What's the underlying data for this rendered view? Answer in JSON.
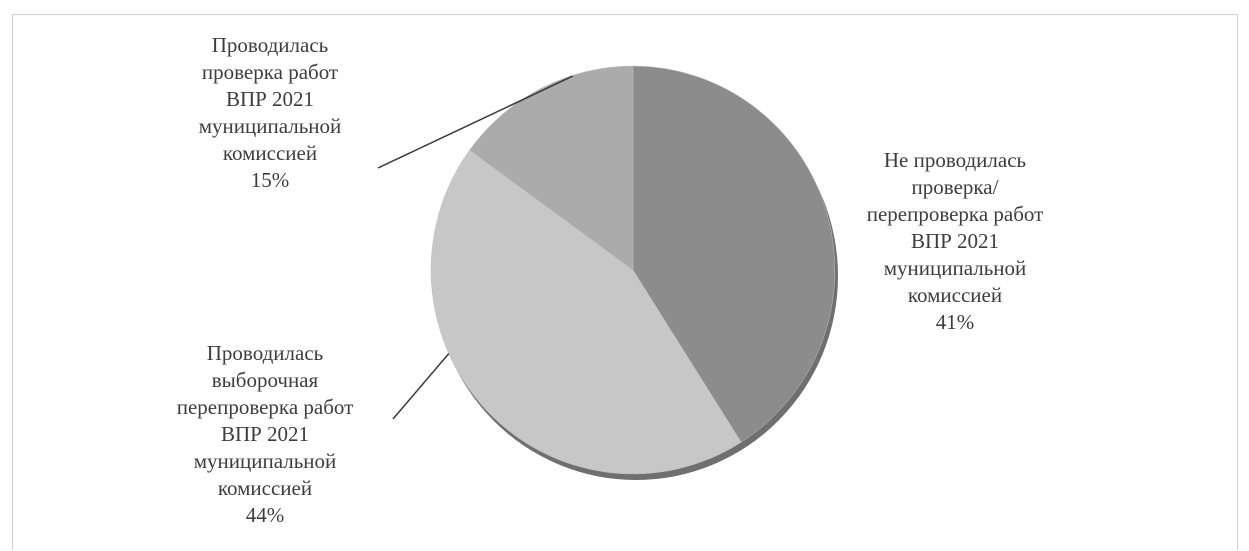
{
  "chart_data": {
    "type": "pie",
    "title": "",
    "slices": [
      {
        "label": "Не проводилась\nпроверка/\nперепроверка работ\nВПР 2021\nмуниципальной\nкомиссией\n41%",
        "value": 41,
        "color": "#8c8c8c"
      },
      {
        "label": "Проводилась\nвыборочная\nперепроверка работ\nВПР 2021\nмуниципальной\nкомиссией\n44%",
        "value": 44,
        "color": "#c7c7c7"
      },
      {
        "label": "Проводилась\nпроверка работ\nВПР 2021\nмуниципальной\nкомиссией\n15%",
        "value": 15,
        "color": "#ababab"
      }
    ],
    "legend": "none",
    "start_angle": "12 o'clock",
    "direction": "clockwise"
  }
}
